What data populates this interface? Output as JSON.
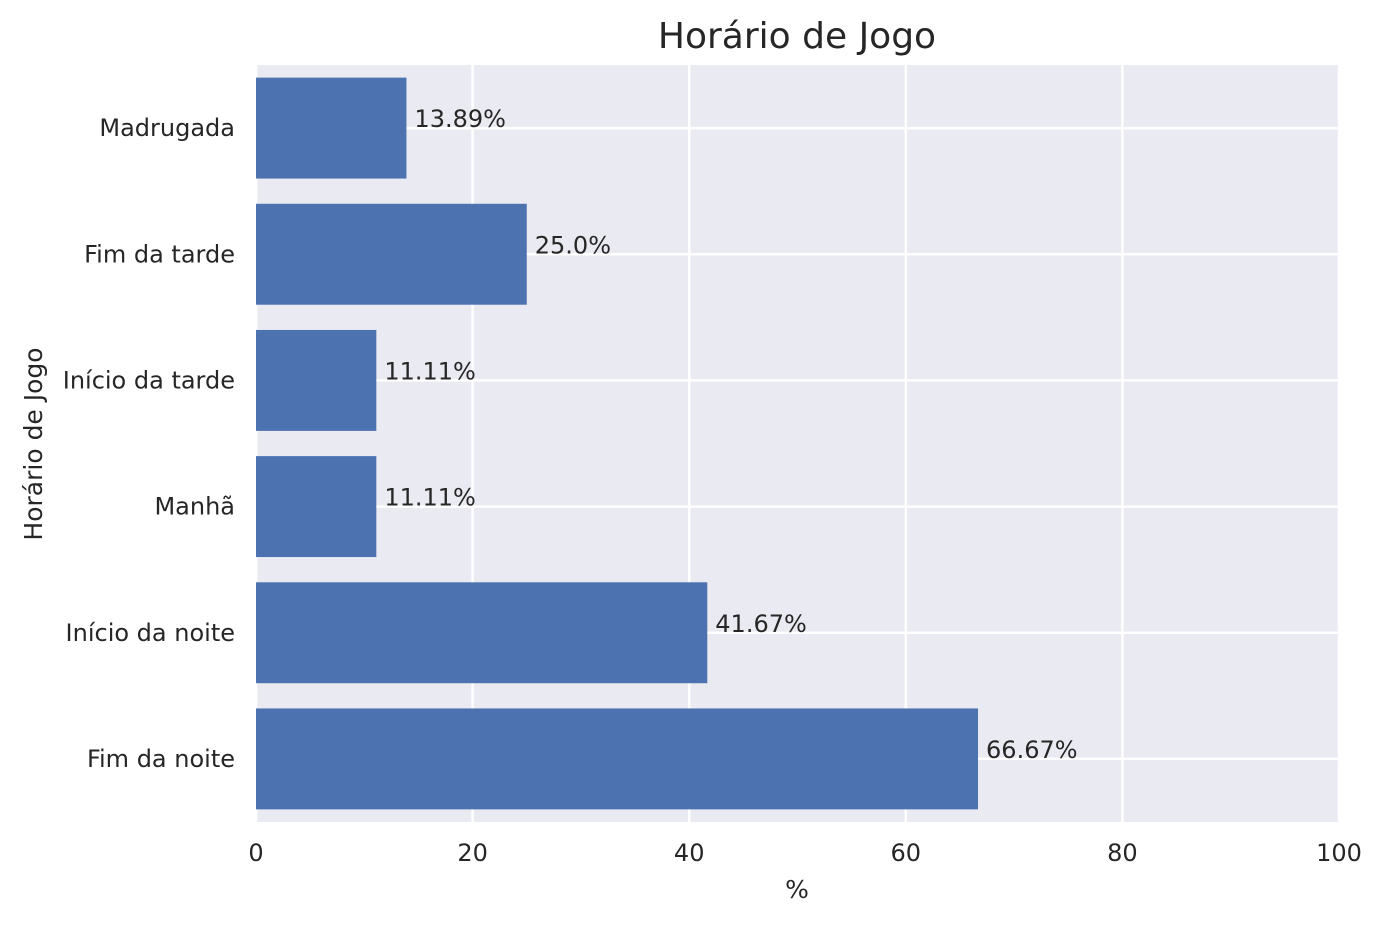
{
  "chart_data": {
    "type": "bar",
    "orientation": "horizontal",
    "title": "Horário de Jogo",
    "xlabel": "%",
    "ylabel": "Horário de Jogo",
    "xlim": [
      0,
      100
    ],
    "xticks": [
      0,
      20,
      40,
      60,
      80,
      100
    ],
    "categories": [
      "Fim da noite",
      "Início da noite",
      "Manhã",
      "Início da tarde",
      "Fim da tarde",
      "Madrugada"
    ],
    "values": [
      66.67,
      41.67,
      11.11,
      11.11,
      25.0,
      13.89
    ],
    "value_labels": [
      "66.67%",
      "41.67%",
      "11.11%",
      "11.11%",
      "25.0%",
      "13.89%"
    ],
    "grid": true,
    "colors": {
      "bar": "#4C72B0",
      "plot_bg": "#EAEAF2",
      "grid": "#FFFFFF"
    }
  }
}
